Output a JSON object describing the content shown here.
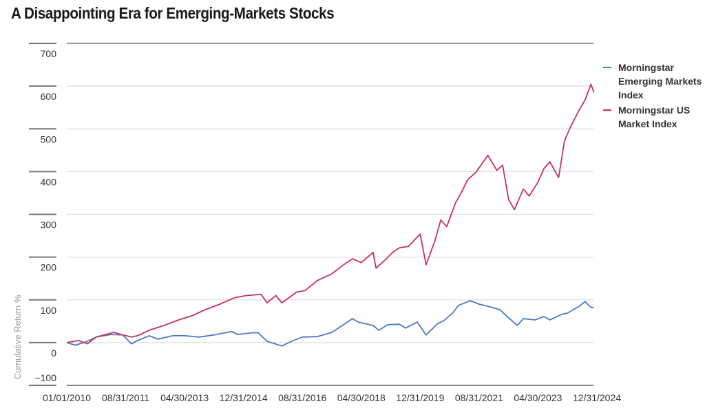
{
  "chart_data": {
    "type": "line",
    "title": "A Disappointing Era for Emerging-Markets Stocks",
    "xlabel": "",
    "ylabel": "Cumulative Return %",
    "ylim": [
      -100,
      700
    ],
    "yticks": [
      700,
      600,
      500,
      400,
      300,
      200,
      100,
      0,
      -100
    ],
    "ytick_labels": [
      "700",
      "600",
      "500",
      "400",
      "300",
      "200",
      "100",
      "0",
      "−100"
    ],
    "xlim": [
      "2010-01",
      "2024-12"
    ],
    "xtick_labels": [
      "01/01/2010",
      "08/31/2011",
      "04/30/2013",
      "12/31/2014",
      "08/31/2016",
      "04/30/2018",
      "12/31/2019",
      "08/31/2021",
      "04/30/2023",
      "12/31/2024"
    ],
    "grid": true,
    "legend_placement": "right",
    "series": [
      {
        "name": "Morningstar Emerging Markets Index",
        "color": "#4a78c8",
        "points": [
          [
            "2010-01",
            0
          ],
          [
            "2010-04",
            -6
          ],
          [
            "2010-08",
            3
          ],
          [
            "2010-11",
            13
          ],
          [
            "2011-04",
            19
          ],
          [
            "2011-08",
            18
          ],
          [
            "2011-11",
            -3
          ],
          [
            "2012-01",
            5
          ],
          [
            "2012-05",
            16
          ],
          [
            "2012-08",
            8
          ],
          [
            "2013-01",
            16
          ],
          [
            "2013-05",
            16
          ],
          [
            "2013-10",
            13
          ],
          [
            "2014-03",
            18
          ],
          [
            "2014-09",
            26
          ],
          [
            "2014-11",
            19
          ],
          [
            "2015-04",
            23
          ],
          [
            "2015-06",
            23
          ],
          [
            "2015-09",
            3
          ],
          [
            "2016-02",
            -8
          ],
          [
            "2016-05",
            2
          ],
          [
            "2016-09",
            13
          ],
          [
            "2017-02",
            14
          ],
          [
            "2017-07",
            24
          ],
          [
            "2017-11",
            42
          ],
          [
            "2018-02",
            56
          ],
          [
            "2018-04",
            48
          ],
          [
            "2018-09",
            40
          ],
          [
            "2018-11",
            29
          ],
          [
            "2019-02",
            42
          ],
          [
            "2019-06",
            43
          ],
          [
            "2019-08",
            34
          ],
          [
            "2019-12",
            48
          ],
          [
            "2020-03",
            18
          ],
          [
            "2020-07",
            45
          ],
          [
            "2020-09",
            51
          ],
          [
            "2020-12",
            69
          ],
          [
            "2021-02",
            87
          ],
          [
            "2021-06",
            98
          ],
          [
            "2021-09",
            90
          ],
          [
            "2021-12",
            85
          ],
          [
            "2022-04",
            77
          ],
          [
            "2022-07",
            58
          ],
          [
            "2022-10",
            40
          ],
          [
            "2022-12",
            56
          ],
          [
            "2023-04",
            53
          ],
          [
            "2023-07",
            61
          ],
          [
            "2023-09",
            53
          ],
          [
            "2024-01",
            66
          ],
          [
            "2024-03",
            69
          ],
          [
            "2024-07",
            85
          ],
          [
            "2024-09",
            96
          ],
          [
            "2024-11",
            82
          ],
          [
            "2024-12",
            82
          ]
        ]
      },
      {
        "name": "Morningstar US Market Index",
        "color": "#c8325a",
        "points": [
          [
            "2010-01",
            0
          ],
          [
            "2010-05",
            5
          ],
          [
            "2010-08",
            -3
          ],
          [
            "2010-11",
            13
          ],
          [
            "2011-05",
            24
          ],
          [
            "2011-08",
            18
          ],
          [
            "2011-11",
            13
          ],
          [
            "2012-01",
            16
          ],
          [
            "2012-05",
            29
          ],
          [
            "2012-10",
            40
          ],
          [
            "2013-03",
            53
          ],
          [
            "2013-08",
            64
          ],
          [
            "2013-12",
            77
          ],
          [
            "2014-05",
            90
          ],
          [
            "2014-10",
            105
          ],
          [
            "2015-02",
            110
          ],
          [
            "2015-07",
            113
          ],
          [
            "2015-09",
            93
          ],
          [
            "2015-12",
            110
          ],
          [
            "2016-02",
            93
          ],
          [
            "2016-07",
            118
          ],
          [
            "2016-10",
            122
          ],
          [
            "2017-02",
            145
          ],
          [
            "2017-07",
            161
          ],
          [
            "2017-11",
            182
          ],
          [
            "2018-02",
            196
          ],
          [
            "2018-05",
            187
          ],
          [
            "2018-09",
            211
          ],
          [
            "2018-10",
            174
          ],
          [
            "2019-01",
            193
          ],
          [
            "2019-04",
            213
          ],
          [
            "2019-06",
            222
          ],
          [
            "2019-09",
            225
          ],
          [
            "2020-01",
            254
          ],
          [
            "2020-03",
            182
          ],
          [
            "2020-06",
            238
          ],
          [
            "2020-08",
            287
          ],
          [
            "2020-10",
            271
          ],
          [
            "2021-01",
            327
          ],
          [
            "2021-03",
            351
          ],
          [
            "2021-05",
            380
          ],
          [
            "2021-08",
            399
          ],
          [
            "2021-10",
            419
          ],
          [
            "2021-12",
            438
          ],
          [
            "2022-03",
            403
          ],
          [
            "2022-05",
            415
          ],
          [
            "2022-07",
            335
          ],
          [
            "2022-09",
            311
          ],
          [
            "2022-12",
            359
          ],
          [
            "2023-02",
            343
          ],
          [
            "2023-05",
            375
          ],
          [
            "2023-07",
            407
          ],
          [
            "2023-09",
            423
          ],
          [
            "2023-12",
            386
          ],
          [
            "2024-02",
            472
          ],
          [
            "2024-04",
            504
          ],
          [
            "2024-07",
            544
          ],
          [
            "2024-09",
            568
          ],
          [
            "2024-11",
            604
          ],
          [
            "2024-12",
            585
          ]
        ]
      }
    ]
  }
}
